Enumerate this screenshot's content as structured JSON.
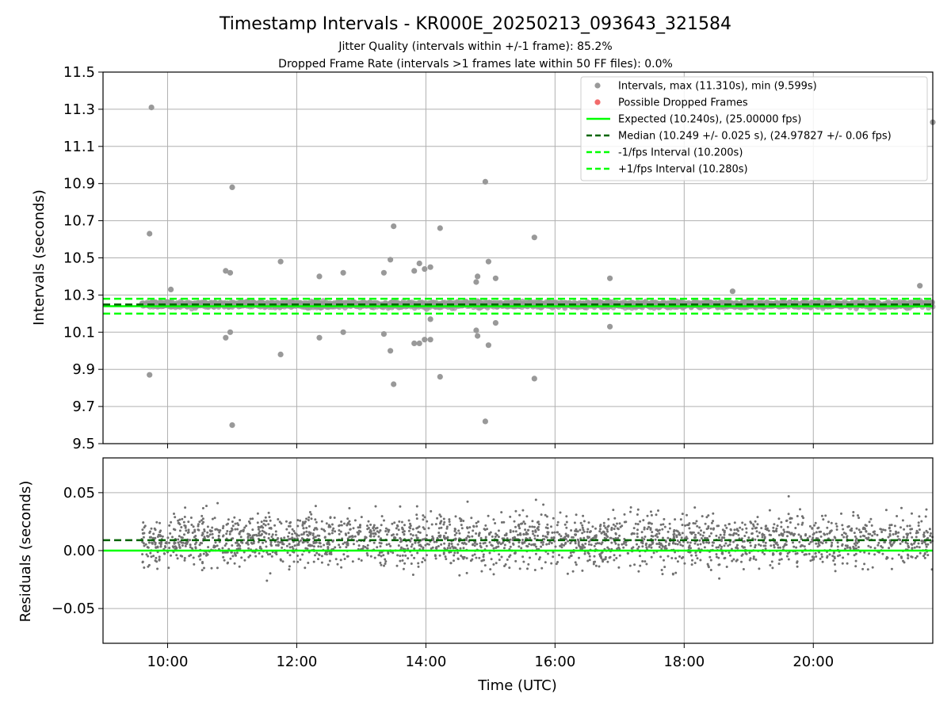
{
  "chart_data": [
    {
      "type": "scatter",
      "title": "Timestamp Intervals - KR000E_20250213_093643_321584",
      "subtitle_lines": [
        "Jitter Quality (intervals within +/-1 frame): 85.2%",
        "Dropped Frame Rate (intervals >1 frames late within 50 FF files): 0.0%"
      ],
      "ylabel": "Intervals (seconds)",
      "xlim_hours": [
        9.0,
        21.85
      ],
      "ylim": [
        9.5,
        11.5
      ],
      "y_ticks": [
        "9.5",
        "9.7",
        "9.9",
        "10.1",
        "10.3",
        "10.5",
        "10.7",
        "10.9",
        "11.1",
        "11.3",
        "11.5"
      ],
      "grid": true,
      "legend_position": "top-right",
      "legend": [
        {
          "label": "Intervals, max (11.310s), min (9.599s)",
          "kind": "marker",
          "color": "#999999"
        },
        {
          "label": "Possible Dropped Frames",
          "kind": "marker",
          "color": "#f26b6b"
        },
        {
          "label": "Expected (10.240s), (25.00000 fps)",
          "kind": "line",
          "color": "#00ff00"
        },
        {
          "label": "Median (10.249 +/- 0.025 s), (24.97827 +/- 0.06 fps)",
          "kind": "dashed",
          "color": "#006400"
        },
        {
          "label": "-1/fps Interval (10.200s)",
          "kind": "dashed",
          "color": "#00ff00"
        },
        {
          "label": "+1/fps Interval (10.280s)",
          "kind": "dashed",
          "color": "#00ff00"
        }
      ],
      "reference_lines": {
        "expected": 10.24,
        "median": 10.249,
        "lower": 10.2,
        "upper": 10.28
      },
      "band": {
        "x_start": 9.6,
        "x_end": 21.85,
        "center": 10.249,
        "spread": 0.025
      },
      "outliers": [
        {
          "x": 9.75,
          "y": 11.31
        },
        {
          "x": 9.72,
          "y": 10.63
        },
        {
          "x": 9.72,
          "y": 9.87
        },
        {
          "x": 10.05,
          "y": 10.33
        },
        {
          "x": 10.9,
          "y": 10.43
        },
        {
          "x": 10.97,
          "y": 10.42
        },
        {
          "x": 11.0,
          "y": 10.88
        },
        {
          "x": 10.9,
          "y": 10.07
        },
        {
          "x": 10.97,
          "y": 10.1
        },
        {
          "x": 11.0,
          "y": 9.6
        },
        {
          "x": 11.75,
          "y": 10.48
        },
        {
          "x": 11.75,
          "y": 9.98
        },
        {
          "x": 12.35,
          "y": 10.4
        },
        {
          "x": 12.35,
          "y": 10.07
        },
        {
          "x": 12.72,
          "y": 10.42
        },
        {
          "x": 12.72,
          "y": 10.1
        },
        {
          "x": 13.35,
          "y": 10.42
        },
        {
          "x": 13.35,
          "y": 10.09
        },
        {
          "x": 13.45,
          "y": 10.49
        },
        {
          "x": 13.45,
          "y": 10.0
        },
        {
          "x": 13.5,
          "y": 10.67
        },
        {
          "x": 13.5,
          "y": 9.82
        },
        {
          "x": 13.82,
          "y": 10.43
        },
        {
          "x": 13.9,
          "y": 10.47
        },
        {
          "x": 13.82,
          "y": 10.04
        },
        {
          "x": 13.9,
          "y": 10.04
        },
        {
          "x": 13.98,
          "y": 10.44
        },
        {
          "x": 13.98,
          "y": 10.06
        },
        {
          "x": 14.07,
          "y": 10.45
        },
        {
          "x": 14.07,
          "y": 10.06
        },
        {
          "x": 14.07,
          "y": 10.17
        },
        {
          "x": 14.22,
          "y": 10.66
        },
        {
          "x": 14.22,
          "y": 9.86
        },
        {
          "x": 14.78,
          "y": 10.37
        },
        {
          "x": 14.8,
          "y": 10.4
        },
        {
          "x": 14.78,
          "y": 10.11
        },
        {
          "x": 14.8,
          "y": 10.08
        },
        {
          "x": 14.92,
          "y": 10.91
        },
        {
          "x": 14.92,
          "y": 9.62
        },
        {
          "x": 14.97,
          "y": 10.48
        },
        {
          "x": 14.97,
          "y": 10.03
        },
        {
          "x": 15.08,
          "y": 10.39
        },
        {
          "x": 15.08,
          "y": 10.15
        },
        {
          "x": 15.68,
          "y": 10.61
        },
        {
          "x": 15.68,
          "y": 9.85
        },
        {
          "x": 16.85,
          "y": 10.39
        },
        {
          "x": 16.85,
          "y": 10.13
        },
        {
          "x": 18.75,
          "y": 10.32
        },
        {
          "x": 21.65,
          "y": 10.35
        },
        {
          "x": 21.85,
          "y": 11.23
        }
      ]
    },
    {
      "type": "scatter",
      "xlabel": "Time (UTC)",
      "ylabel": "Residuals (seconds)",
      "xlim_hours": [
        9.0,
        21.85
      ],
      "ylim": [
        -0.08,
        0.08
      ],
      "x_ticks": [
        {
          "hour": 10,
          "label": "10:00"
        },
        {
          "hour": 12,
          "label": "12:00"
        },
        {
          "hour": 14,
          "label": "14:00"
        },
        {
          "hour": 16,
          "label": "16:00"
        },
        {
          "hour": 18,
          "label": "18:00"
        },
        {
          "hour": 20,
          "label": "20:00"
        }
      ],
      "y_ticks": [
        {
          "value": -0.05,
          "label": "−0.05"
        },
        {
          "value": 0.0,
          "label": "0.00"
        },
        {
          "value": 0.05,
          "label": "0.05"
        }
      ],
      "grid": true,
      "reference_lines": {
        "zero": 0.0,
        "median_offset": 0.009
      },
      "scatter": {
        "x_start": 9.6,
        "x_end": 21.85,
        "center": 0.009,
        "spread": 0.025,
        "range": [
          -0.07,
          0.08
        ]
      },
      "colors": {
        "points": "#707070",
        "zero_line": "#00ff00",
        "median_line": "#006400"
      }
    }
  ]
}
